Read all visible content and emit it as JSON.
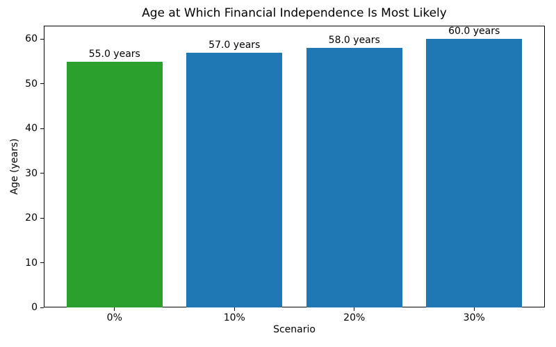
{
  "chart_data": {
    "type": "bar",
    "title": "Age at Which Financial Independence Is Most Likely",
    "xlabel": "Scenario",
    "ylabel": "Age (years)",
    "categories": [
      "0%",
      "10%",
      "20%",
      "30%"
    ],
    "values": [
      55.0,
      57.0,
      58.0,
      60.0
    ],
    "bar_labels": [
      "55.0 years",
      "57.0 years",
      "58.0 years",
      "60.0 years"
    ],
    "bar_colors": [
      "#2ca02c",
      "#1f77b4",
      "#1f77b4",
      "#1f77b4"
    ],
    "ylim": [
      0,
      63
    ],
    "yticks": [
      0,
      10,
      20,
      30,
      40,
      50,
      60
    ],
    "grid": false,
    "legend": null,
    "background_color": "#ffffff",
    "spine_color": "#000000",
    "text_color": "#000000"
  }
}
